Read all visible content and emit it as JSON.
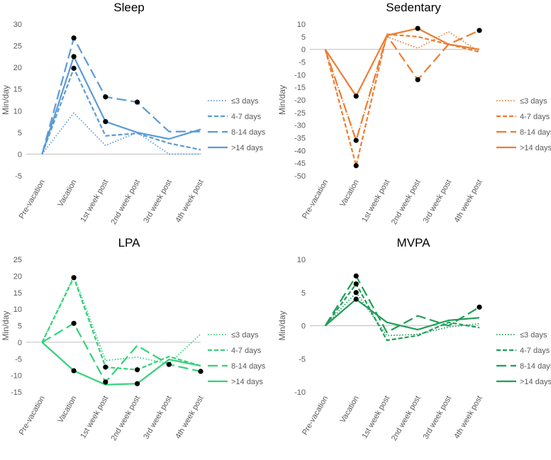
{
  "chart_data": [
    {
      "type": "line",
      "title": "Sleep",
      "ylabel": "Min/day",
      "xlabel": "",
      "color": "#5b9bd5",
      "ylim": [
        -5,
        30
      ],
      "yticks": [
        -5,
        0,
        5,
        10,
        15,
        20,
        25,
        30
      ],
      "categories": [
        "Pre-vacation",
        "Vacation",
        "1st week post",
        "2nd week post",
        "3rd week post",
        "4th week post"
      ],
      "series": [
        {
          "name": "≤3 days",
          "style": "dotted",
          "values": [
            0,
            9.5,
            2,
            5,
            0,
            0
          ],
          "markers": []
        },
        {
          "name": "4-7 days",
          "style": "dashed",
          "values": [
            0,
            19.8,
            4.2,
            4.8,
            2.5,
            1
          ],
          "markers": [
            1
          ]
        },
        {
          "name": "8-14 days",
          "style": "longdash",
          "values": [
            0,
            26.8,
            13.2,
            12,
            5.2,
            5.2
          ],
          "markers": [
            1,
            2,
            3
          ]
        },
        {
          "name": ">14 days",
          "style": "solid",
          "values": [
            0,
            22.5,
            7.5,
            5,
            3.5,
            5.7
          ],
          "markers": [
            1,
            2
          ]
        }
      ]
    },
    {
      "type": "line",
      "title": "Sedentary",
      "ylabel": "Min/day",
      "xlabel": "",
      "color": "#ed7d31",
      "ylim": [
        -50,
        10
      ],
      "yticks": [
        -50,
        -45,
        -40,
        -35,
        -30,
        -25,
        -20,
        -15,
        -10,
        -5,
        0,
        5,
        10
      ],
      "categories": [
        "Pre-vacation",
        "Vacation",
        "1st week post",
        "2nd week post",
        "3rd week post",
        "4th week post"
      ],
      "series": [
        {
          "name": "≤3 days",
          "style": "dotted",
          "values": [
            0,
            -36,
            5,
            0.5,
            7,
            -1
          ],
          "markers": []
        },
        {
          "name": "4-7 days",
          "style": "dashed",
          "values": [
            0,
            -46,
            6,
            5,
            2,
            -1
          ],
          "markers": [
            1
          ]
        },
        {
          "name": "8-14 days",
          "style": "longdash",
          "values": [
            0,
            -36,
            5.5,
            -12,
            2,
            7.5
          ],
          "markers": [
            1,
            3,
            5
          ]
        },
        {
          "name": ">14 days",
          "style": "solid",
          "values": [
            0,
            -18.5,
            5.5,
            8.3,
            2,
            0
          ],
          "markers": [
            1,
            3
          ]
        }
      ]
    },
    {
      "type": "line",
      "title": "LPA",
      "ylabel": "Min/day",
      "xlabel": "",
      "color": "#33d17a",
      "ylim": [
        -15,
        25
      ],
      "yticks": [
        -15,
        -10,
        -5,
        0,
        5,
        10,
        15,
        20,
        25
      ],
      "categories": [
        "Pre-vacation",
        "Vacation",
        "1st week post",
        "2nd week post",
        "3rd week post",
        "4th week post"
      ],
      "series": [
        {
          "name": "≤3 days",
          "style": "dotted",
          "values": [
            0,
            20,
            -5.5,
            -4.5,
            -6.5,
            2.5
          ],
          "markers": []
        },
        {
          "name": "4-7 days",
          "style": "dashed",
          "values": [
            0,
            19.5,
            -7.5,
            -8.3,
            -4.3,
            -7.1
          ],
          "markers": [
            1,
            2,
            3
          ]
        },
        {
          "name": "8-14 days",
          "style": "longdash",
          "values": [
            0,
            5.7,
            -12,
            -1,
            -6.7,
            -8.8
          ],
          "markers": [
            1,
            2,
            4,
            5
          ]
        },
        {
          "name": ">14 days",
          "style": "solid",
          "values": [
            0,
            -8.6,
            -12.8,
            -12.5,
            -5.2,
            -7.1
          ],
          "markers": [
            1,
            3
          ]
        }
      ]
    },
    {
      "type": "line",
      "title": "MVPA",
      "ylabel": "Min/day",
      "xlabel": "",
      "color": "#1e9e57",
      "ylim": [
        -10,
        10
      ],
      "yticks": [
        -10,
        -5,
        0,
        5,
        10
      ],
      "categories": [
        "Pre-vacation",
        "Vacation",
        "1st week post",
        "2nd week post",
        "3rd week post",
        "4th week post"
      ],
      "series": [
        {
          "name": "≤3 days",
          "style": "dotted",
          "values": [
            0,
            5,
            -1.5,
            -1.3,
            -0.2,
            0.3
          ],
          "markers": [
            1
          ]
        },
        {
          "name": "4-7 days",
          "style": "dashed",
          "values": [
            0,
            6.3,
            -2.2,
            -1.5,
            0.5,
            -0.3
          ],
          "markers": [
            1
          ]
        },
        {
          "name": "8-14 days",
          "style": "longdash",
          "values": [
            0,
            7.5,
            -1,
            1.5,
            0,
            2.8
          ],
          "markers": [
            1,
            5
          ]
        },
        {
          "name": ">14 days",
          "style": "solid",
          "values": [
            0,
            4,
            0.5,
            -0.6,
            0.8,
            1.2
          ],
          "markers": [
            1
          ]
        }
      ]
    }
  ]
}
